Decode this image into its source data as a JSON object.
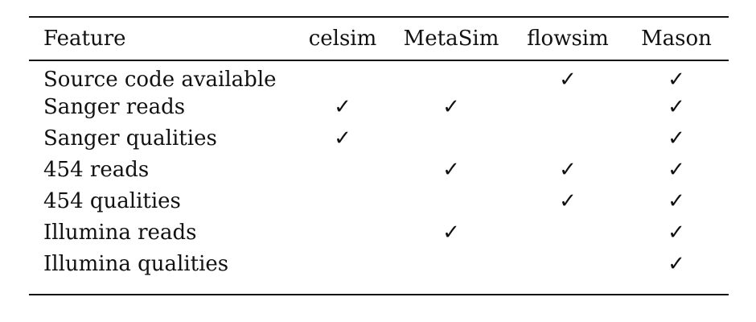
{
  "table": {
    "columns": [
      "Feature",
      "celsim",
      "MetaSim",
      "flowsim",
      "Mason"
    ],
    "check_mark": "✓",
    "rows": [
      {
        "feature": "Source code available",
        "celsim": "",
        "metasim": "",
        "flowsim": "✓",
        "mason": "✓"
      },
      {
        "feature": "Sanger reads",
        "celsim": "✓",
        "metasim": "✓",
        "flowsim": "",
        "mason": "✓"
      },
      {
        "feature": "Sanger qualities",
        "celsim": "✓",
        "metasim": "",
        "flowsim": "",
        "mason": "✓"
      },
      {
        "feature": "454 reads",
        "celsim": "",
        "metasim": "✓",
        "flowsim": "✓",
        "mason": "✓"
      },
      {
        "feature": "454 qualities",
        "celsim": "",
        "metasim": "",
        "flowsim": "✓",
        "mason": "✓"
      },
      {
        "feature": "Illumina reads",
        "celsim": "",
        "metasim": "✓",
        "flowsim": "",
        "mason": "✓"
      },
      {
        "feature": "Illumina qualities",
        "celsim": "",
        "metasim": "",
        "flowsim": "",
        "mason": "✓"
      }
    ]
  }
}
